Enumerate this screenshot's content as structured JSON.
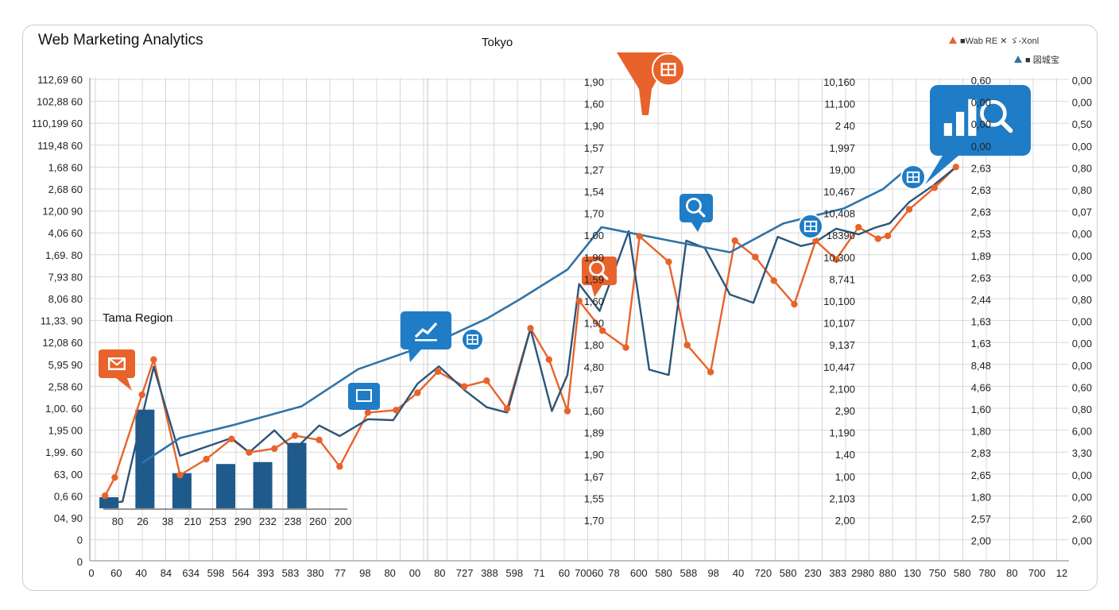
{
  "colors": {
    "orange": "#e8632b",
    "blue_line": "#2f74a8",
    "navy_line": "#2b5578",
    "bar": "#1e5a8c",
    "callout_blue": "#1f7cc6",
    "grid": "#d8d8d8"
  },
  "chart_data": {
    "type": "line",
    "title": "Web Marketing Analytics",
    "subtitle": "Tokyo",
    "annotation": "Tama Region",
    "grid": true,
    "legend_placement": "top-right",
    "legend": [
      {
        "label": "■Wab RE ✕ ゞ-Xonl",
        "color": "#e8632b",
        "shape": "triangle"
      },
      {
        "label": "■ 図城宝",
        "color": "#2f74a8",
        "shape": "triangle"
      }
    ],
    "x_tick_labels": [
      "0",
      "60",
      "40",
      "84",
      "634",
      "598",
      "564",
      "393",
      "583",
      "380",
      "77",
      "98",
      "80",
      "00",
      "80",
      "727",
      "388",
      "598",
      "71",
      "60",
      "70060",
      "78",
      "600",
      "580",
      "588",
      "98",
      "40",
      "720",
      "580",
      "230",
      "383",
      "2980",
      "880",
      "130",
      "750",
      "580",
      "780",
      "80",
      "700",
      "12"
    ],
    "y_axis_1_labels": [
      "112,69 60",
      "102,88 60",
      "110,199 60",
      "119,48 60",
      "1,68 60",
      "2,68 60",
      "12,00 90",
      "4,06 60",
      "1,69. 80",
      "7,93 80",
      "8,06 80",
      "11,33. 90",
      "12,08 60",
      "5,95 90",
      "2,58 60",
      "1,00. 60",
      "1,95 00",
      "1,99. 60",
      "63, 00",
      "0,6 60",
      "04, 90",
      "0",
      "0"
    ],
    "y_axis_2_labels": [
      "1,90",
      "1,60",
      "1,90",
      "1,57",
      "1,27",
      "1,54",
      "1,70",
      "1,00",
      "1,90",
      "1,59",
      "1,60",
      "1,90",
      "1,80",
      "4,80",
      "1,67",
      "1,60",
      "1,89",
      "1,90",
      "1,67",
      "1,55",
      "1,70"
    ],
    "y_axis_3_labels": [
      "10,160",
      "11,100",
      "2 40",
      "1,997",
      "19,00",
      "10,467",
      "10,408",
      "18390",
      "10,300",
      "8,741",
      "10,100",
      "10,107",
      "9,137",
      "10,447",
      "2,100",
      "2,90",
      "1,190",
      "1,40",
      "1,00",
      "2,103",
      "2,00"
    ],
    "y_axis_4_labels": [
      "0,60",
      "0,00",
      "0,00",
      "0,00",
      "2,63",
      "2,63",
      "2,63",
      "2,53",
      "1,89",
      "2,63",
      "2,44",
      "1,63",
      "1,63",
      "8,48",
      "4,66",
      "1,60",
      "1,80",
      "2,83",
      "2,65",
      "1,80",
      "2,57",
      "2,00"
    ],
    "y_axis_5_labels": [
      "0,00",
      "0,00",
      "0,50",
      "0,00",
      "0,80",
      "0,80",
      "0,07",
      "0,00",
      "0,00",
      "0,00",
      "0,80",
      "0,00",
      "0,00",
      "0,00",
      "0,60",
      "0,80",
      "6,00",
      "3,30",
      "0,00",
      "0,00",
      "2,60",
      "0,00"
    ],
    "x_range": [
      0,
      100
    ],
    "y_range": [
      0,
      100
    ],
    "series": [
      {
        "color": "#e8632b",
        "marker": "circle",
        "x": [
          1.4,
          2.4,
          5.2,
          6.4,
          9.1,
          11.8,
          14.4,
          16.2,
          18.8,
          20.9,
          23.4,
          25.5,
          28.4,
          31.3,
          33.5,
          35.6,
          38.3,
          40.6,
          42.7,
          45.1,
          47.0,
          48.9,
          50.1,
          52.5,
          54.9,
          56.3,
          59.3,
          61.2,
          63.6,
          66.1,
          68.2,
          70.1,
          72.2,
          74.4,
          76.5,
          78.8,
          80.8,
          81.8,
          84.0,
          86.6,
          88.8
        ],
        "y": [
          13.5,
          17.3,
          34.5,
          41.8,
          17.8,
          21.1,
          25.3,
          22.5,
          23.3,
          26.0,
          25.1,
          19.6,
          30.8,
          31.3,
          34.9,
          39.3,
          36.2,
          37.4,
          31.6,
          48.3,
          41.8,
          31.1,
          54.0,
          47.8,
          44.3,
          67.4,
          62.1,
          44.8,
          39.2,
          66.5,
          63.1,
          58.2,
          53.3,
          66.5,
          62.6,
          69.3,
          66.9,
          67.5,
          73.0,
          77.5,
          81.8
        ]
      },
      {
        "color": "#2b5578",
        "marker": "none",
        "x": [
          1.4,
          3.2,
          6.4,
          9.1,
          14.4,
          16.2,
          18.8,
          20.8,
          23.4,
          25.5,
          28.4,
          31.0,
          33.5,
          35.7,
          38.3,
          40.6,
          42.7,
          45.1,
          47.3,
          48.9,
          50.1,
          52.2,
          55.2,
          57.3,
          59.3,
          61.1,
          63.0,
          65.6,
          68.0,
          70.5,
          72.9,
          74.2,
          76.5,
          78.8,
          80.5,
          82.0,
          84.0,
          86.5,
          88.8
        ],
        "y": [
          11.9,
          12.3,
          40.3,
          21.8,
          25.5,
          22.5,
          27.1,
          22.9,
          28.1,
          25.9,
          29.4,
          29.2,
          36.8,
          40.4,
          35.5,
          31.9,
          30.8,
          48.2,
          31.1,
          38.6,
          57.5,
          51.9,
          68.5,
          39.7,
          38.6,
          66.5,
          65.0,
          55.3,
          53.6,
          67.3,
          65.4,
          66.0,
          69.0,
          67.8,
          69.2,
          70.1,
          74.5,
          78.0,
          81.8
        ]
      },
      {
        "color": "#2f74a8",
        "marker": "none",
        "x": [
          5.2,
          9.1,
          14.4,
          21.6,
          27.4,
          35.6,
          40.6,
          44.0,
          48.9,
          52.4,
          59.4,
          65.6,
          71.1,
          77.3,
          81.3,
          84.0
        ],
        "y": [
          20.3,
          25.5,
          28.1,
          32.1,
          39.8,
          45.6,
          50.3,
          54.3,
          60.5,
          69.3,
          66.5,
          64.1,
          70.1,
          73.2,
          77.2,
          81.8
        ]
      },
      {
        "color": "#1e5a8c",
        "marker": "bar",
        "x": [
          1.8,
          5.5,
          9.3,
          13.8,
          17.6,
          21.1
        ],
        "y": [
          2.3,
          20.5,
          7.3,
          9.2,
          9.6,
          13.6
        ]
      }
    ],
    "callouts": [
      {
        "icon": "mail-icon",
        "color": "#e8632b",
        "x": 2.4,
        "y": 34.6
      },
      {
        "icon": "growth-chart-icon",
        "color": "#1f7cc6",
        "x": 31.3,
        "y": 42.9
      },
      {
        "icon": "table-icon",
        "color": "#1f7cc6",
        "x": 35.6,
        "y": 45.6
      },
      {
        "icon": "table-icon",
        "color": "#e8632b",
        "x": 55.0,
        "y": 100
      },
      {
        "icon": "search-icon",
        "color": "#e8632b",
        "x": 47.9,
        "y": 52.4
      },
      {
        "icon": "search-icon",
        "color": "#1f7cc6",
        "x": 57.2,
        "y": 71.0
      },
      {
        "icon": "table-icon",
        "color": "#1f7cc6",
        "x": 68.1,
        "y": 65.5
      },
      {
        "icon": "table-icon",
        "color": "#1f7cc6",
        "x": 79.5,
        "y": 78.6
      },
      {
        "icon": "analytics-search-icon",
        "color": "#1f7cc6",
        "x": 84.6,
        "y": 82.4
      }
    ]
  }
}
